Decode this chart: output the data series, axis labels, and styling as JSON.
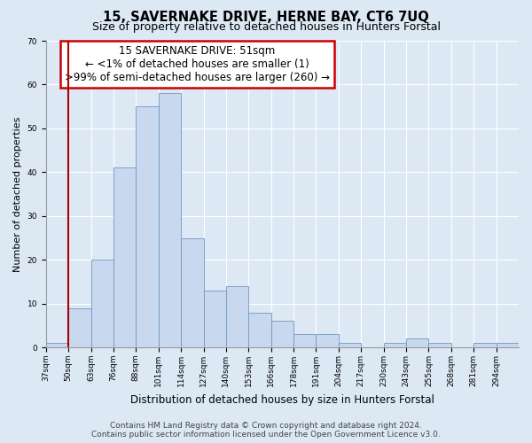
{
  "title": "15, SAVERNAKE DRIVE, HERNE BAY, CT6 7UQ",
  "subtitle": "Size of property relative to detached houses in Hunters Forstal",
  "xlabel": "Distribution of detached houses by size in Hunters Forstal",
  "ylabel": "Number of detached properties",
  "bar_color": "#c8d8ee",
  "bar_edge_color": "#7098c0",
  "highlight_line_color": "#aa0000",
  "bins": [
    "37sqm",
    "50sqm",
    "63sqm",
    "76sqm",
    "88sqm",
    "101sqm",
    "114sqm",
    "127sqm",
    "140sqm",
    "153sqm",
    "166sqm",
    "178sqm",
    "191sqm",
    "204sqm",
    "217sqm",
    "230sqm",
    "243sqm",
    "255sqm",
    "268sqm",
    "281sqm",
    "294sqm"
  ],
  "values": [
    1,
    9,
    20,
    41,
    55,
    58,
    25,
    13,
    14,
    8,
    6,
    3,
    3,
    1,
    0,
    1,
    2,
    1,
    0,
    1,
    1
  ],
  "highlight_bin_index": 1,
  "ylim": [
    0,
    70
  ],
  "yticks": [
    0,
    10,
    20,
    30,
    40,
    50,
    60,
    70
  ],
  "annotation_title": "15 SAVERNAKE DRIVE: 51sqm",
  "annotation_line1": "← <1% of detached houses are smaller (1)",
  "annotation_line2": ">99% of semi-detached houses are larger (260) →",
  "footer_line1": "Contains HM Land Registry data © Crown copyright and database right 2024.",
  "footer_line2": "Contains public sector information licensed under the Open Government Licence v3.0.",
  "background_color": "#dde8f5",
  "plot_bg_color": "#dde8f5",
  "grid_color": "#ffffff",
  "title_fontsize": 10.5,
  "subtitle_fontsize": 9,
  "xlabel_fontsize": 8.5,
  "ylabel_fontsize": 8,
  "tick_fontsize": 6.5,
  "annotation_fontsize": 8.5,
  "footer_fontsize": 6.5
}
